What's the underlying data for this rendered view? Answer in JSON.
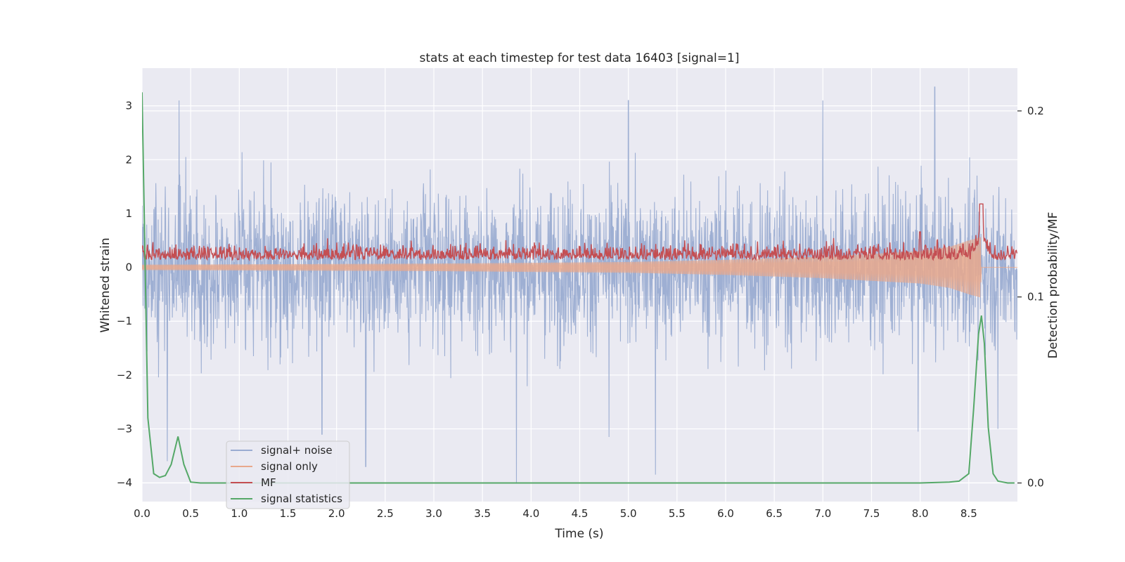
{
  "chart_data": {
    "type": "line",
    "title": "stats at each timestep for test data 16403 [signal=1]",
    "xlabel": "Time (s)",
    "ylabel": "Whitened strain",
    "y2label": "Detection probability/MF",
    "xlim": [
      0,
      9.0
    ],
    "ylim": [
      -4.35,
      3.7
    ],
    "y2lim": [
      -0.01,
      0.223
    ],
    "x_ticks": [
      "0.0",
      "0.5",
      "1.0",
      "1.5",
      "2.0",
      "2.5",
      "3.0",
      "3.5",
      "4.0",
      "4.5",
      "5.0",
      "5.5",
      "6.0",
      "6.5",
      "7.0",
      "7.5",
      "8.0",
      "8.5"
    ],
    "y_ticks": [
      "3",
      "2",
      "1",
      "0",
      "−1",
      "−2",
      "−3",
      "−4"
    ],
    "y2_ticks": [
      "0.2",
      "0.1",
      "0.0"
    ],
    "grid": true,
    "legend_position": "lower-left",
    "colors": {
      "background": "#eaeaf2",
      "grid": "#ffffff",
      "signal_noise": "#9aacd1",
      "signal_only": "#e8a88c",
      "mf": "#c44e52",
      "signal_statistics": "#55a868"
    },
    "series": [
      {
        "name": "signal+ noise",
        "axis": "left",
        "description_range": [
          -4.0,
          3.35
        ],
        "extremes": [
          {
            "x": 0.38,
            "y": 3.1
          },
          {
            "x": 0.26,
            "y": -3.6
          },
          {
            "x": 1.85,
            "y": -3.1
          },
          {
            "x": 2.3,
            "y": -3.7
          },
          {
            "x": 3.85,
            "y": -4.0
          },
          {
            "x": 4.8,
            "y": -3.15
          },
          {
            "x": 5.0,
            "y": 3.1
          },
          {
            "x": 5.28,
            "y": -3.85
          },
          {
            "x": 7.0,
            "y": 3.1
          },
          {
            "x": 8.15,
            "y": 3.35
          },
          {
            "x": 7.98,
            "y": -3.05
          },
          {
            "x": 8.8,
            "y": -3.0
          }
        ]
      },
      {
        "name": "signal only",
        "axis": "left",
        "envelope": [
          {
            "x": 0.0,
            "amp": 0.05
          },
          {
            "x": 3.0,
            "amp": 0.07
          },
          {
            "x": 5.0,
            "amp": 0.1
          },
          {
            "x": 6.0,
            "amp": 0.14
          },
          {
            "x": 7.0,
            "amp": 0.2
          },
          {
            "x": 7.5,
            "amp": 0.25
          },
          {
            "x": 8.0,
            "amp": 0.3
          },
          {
            "x": 8.3,
            "amp": 0.38
          },
          {
            "x": 8.5,
            "amp": 0.5
          },
          {
            "x": 8.62,
            "amp": 0.56
          },
          {
            "x": 8.63,
            "amp": 0.0
          },
          {
            "x": 9.0,
            "amp": 0.0
          }
        ]
      },
      {
        "name": "MF",
        "axis": "right",
        "baseline": 0.122,
        "peak": {
          "x": 8.63,
          "y": 0.15
        },
        "secondary_peak": {
          "x": 8.0,
          "y": 0.135
        }
      },
      {
        "name": "signal statistics",
        "axis": "right",
        "x": [
          0.0,
          0.06,
          0.12,
          0.18,
          0.24,
          0.3,
          0.37,
          0.43,
          0.5,
          0.6,
          1.0,
          2.0,
          4.0,
          6.0,
          8.0,
          8.3,
          8.4,
          8.45,
          8.5,
          8.55,
          8.6,
          8.63,
          8.66,
          8.7,
          8.75,
          8.8,
          8.85,
          8.9,
          8.97
        ],
        "values": [
          0.21,
          0.035,
          0.005,
          0.003,
          0.004,
          0.01,
          0.025,
          0.01,
          0.0005,
          0.0,
          0.0,
          0.0,
          0.0,
          0.0,
          0.0,
          0.0005,
          0.001,
          0.003,
          0.005,
          0.04,
          0.08,
          0.09,
          0.075,
          0.03,
          0.005,
          0.001,
          0.0005,
          0.0,
          0.0
        ]
      }
    ]
  }
}
